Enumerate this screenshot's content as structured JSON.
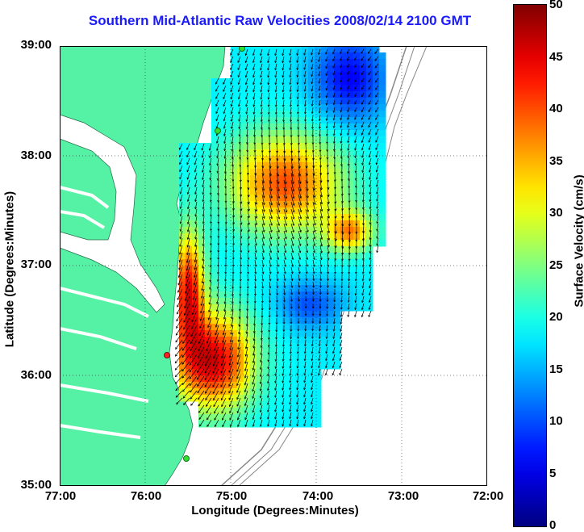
{
  "title": "Southern Mid-Atlantic Raw Velocities 2008/02/14 2100 GMT",
  "x_axis": {
    "label": "Longitude (Degrees:Minutes)",
    "ticks": [
      "77:00",
      "76:00",
      "75:00",
      "74:00",
      "73:00",
      "72:00"
    ]
  },
  "y_axis": {
    "label": "Latitude (Degrees:Minutes)",
    "ticks": [
      "39:00",
      "38:00",
      "37:00",
      "36:00",
      "35:00"
    ]
  },
  "colorbar": {
    "label": "Surface Velocity (cm/s)",
    "ticks": [
      "50",
      "45",
      "40",
      "35",
      "30",
      "25",
      "20",
      "15",
      "10",
      "5",
      "0"
    ],
    "range": [
      0,
      50
    ],
    "colormap": "jet"
  },
  "colors": {
    "land": "#55f2a6",
    "water": "#ffffff",
    "title": "#1a1aff",
    "station_green": "#33dd33",
    "station_red": "#ff2222"
  }
}
